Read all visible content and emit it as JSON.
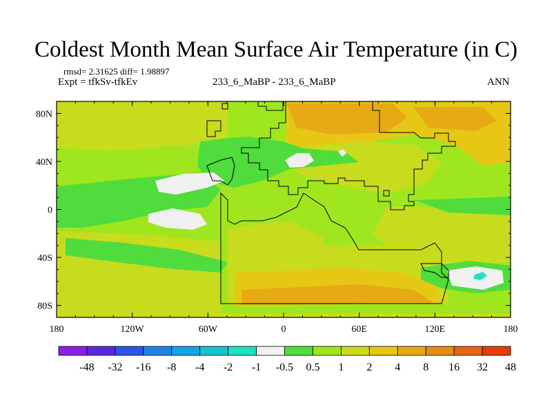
{
  "title": "Coldest Month Mean Surface Air Temperature (in C)",
  "stats": "rmsd= 2.31625  diff= 1.98897",
  "experiment": "Expt = tfkSv-tfkEv",
  "runs": "233_6_MaBP - 233_6_MaBP",
  "season": "ANN",
  "map": {
    "type": "filled contour map",
    "lon_range": [
      -180,
      180
    ],
    "lat_range": [
      -90,
      90
    ],
    "x_ticks": [
      {
        "value": -180,
        "label": "180"
      },
      {
        "value": -120,
        "label": "120W"
      },
      {
        "value": -60,
        "label": "60W"
      },
      {
        "value": 0,
        "label": "0"
      },
      {
        "value": 60,
        "label": "60E"
      },
      {
        "value": 120,
        "label": "120E"
      },
      {
        "value": 180,
        "label": "180"
      }
    ],
    "y_ticks": [
      {
        "value": 80,
        "label": "80N"
      },
      {
        "value": 40,
        "label": "40N"
      },
      {
        "value": 0,
        "label": "0"
      },
      {
        "value": -40,
        "label": "40S"
      },
      {
        "value": -80,
        "label": "80S"
      }
    ]
  },
  "colorbar": {
    "colors": [
      "#8c1ee6",
      "#5a28e0",
      "#2d55e6",
      "#1e82e6",
      "#14a5e6",
      "#14c3d2",
      "#1ee1c3",
      "#f0f0f0",
      "#50dc3c",
      "#a0e61e",
      "#c8dc1e",
      "#e6c814",
      "#e6aa14",
      "#e68c14",
      "#e66414",
      "#e63c0a"
    ],
    "labels": [
      "-48",
      "-32",
      "-16",
      "-8",
      "-4",
      "-2",
      "-1",
      "-0.5",
      "0.5",
      "1",
      "2",
      "4",
      "8",
      "16",
      "32",
      "48"
    ]
  },
  "palette": {
    "base": "#a0e61e",
    "warm": "#c8dc1e",
    "warmer": "#e6c814",
    "hot": "#e6aa14",
    "cool": "#50dc3c",
    "neutral": "#f0f0f0",
    "cyan": "#1ee1c3",
    "outline": "#000000"
  }
}
